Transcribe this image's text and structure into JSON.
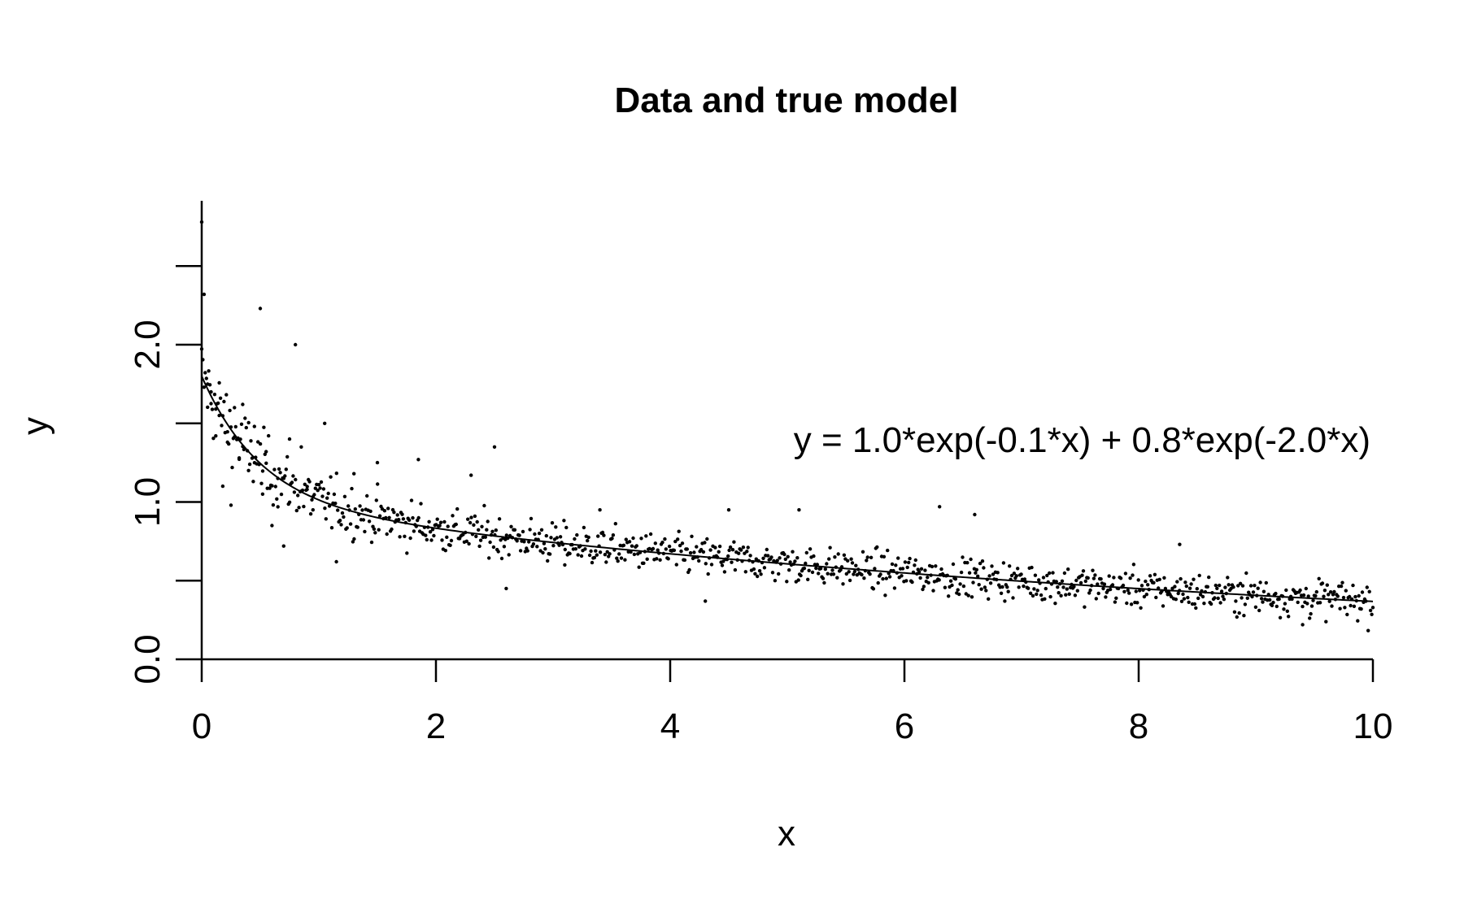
{
  "chart_data": {
    "type": "scatter",
    "title": "Data and true model",
    "xlabel": "x",
    "ylabel": "y",
    "xlim": [
      0,
      10
    ],
    "ylim": [
      0,
      2.8
    ],
    "x_ticks": [
      0,
      2,
      4,
      6,
      8,
      10
    ],
    "x_tick_labels": [
      "0",
      "2",
      "4",
      "6",
      "8",
      "10"
    ],
    "y_ticks": [
      0,
      0.5,
      1.0,
      1.5,
      2.0,
      2.5
    ],
    "y_tick_labels": [
      "0.0",
      "",
      "1.0",
      "",
      "2.0",
      ""
    ],
    "annotation": "y = 1.0*exp(-0.1*x) + 0.8*exp(-2.0*x)",
    "model": {
      "a1": 1.0,
      "k1": -0.1,
      "a2": 0.8,
      "k2": -2.0
    },
    "grid": false,
    "point_color": "#000000",
    "line_color": "#000000",
    "series": [
      {
        "type": "scatter",
        "x": [
          0.0,
          0.02,
          0.05,
          0.08,
          0.12,
          0.15,
          0.18,
          0.22,
          0.25,
          0.28,
          0.32,
          0.35,
          0.4,
          0.45,
          0.5,
          0.52,
          0.55,
          0.6,
          0.65,
          0.7,
          0.75,
          0.8,
          0.85,
          0.9,
          0.95,
          1.05,
          1.15,
          1.3,
          1.5,
          1.85,
          2.3,
          2.5,
          2.6,
          3.1,
          3.4,
          4.3,
          4.5,
          5.1,
          6.3,
          6.6,
          8.35,
          9.4
        ],
        "y": [
          2.78,
          2.32,
          1.75,
          1.7,
          1.42,
          1.55,
          1.1,
          1.38,
          0.98,
          1.6,
          1.28,
          1.62,
          1.2,
          1.48,
          2.23,
          1.05,
          1.32,
          0.85,
          1.15,
          0.72,
          1.4,
          2.0,
          1.35,
          1.08,
          0.95,
          1.5,
          0.62,
          1.18,
          1.25,
          1.27,
          1.17,
          1.35,
          0.45,
          0.6,
          0.95,
          0.37,
          0.95,
          0.95,
          0.97,
          0.92,
          0.73,
          0.22
        ]
      }
    ]
  }
}
